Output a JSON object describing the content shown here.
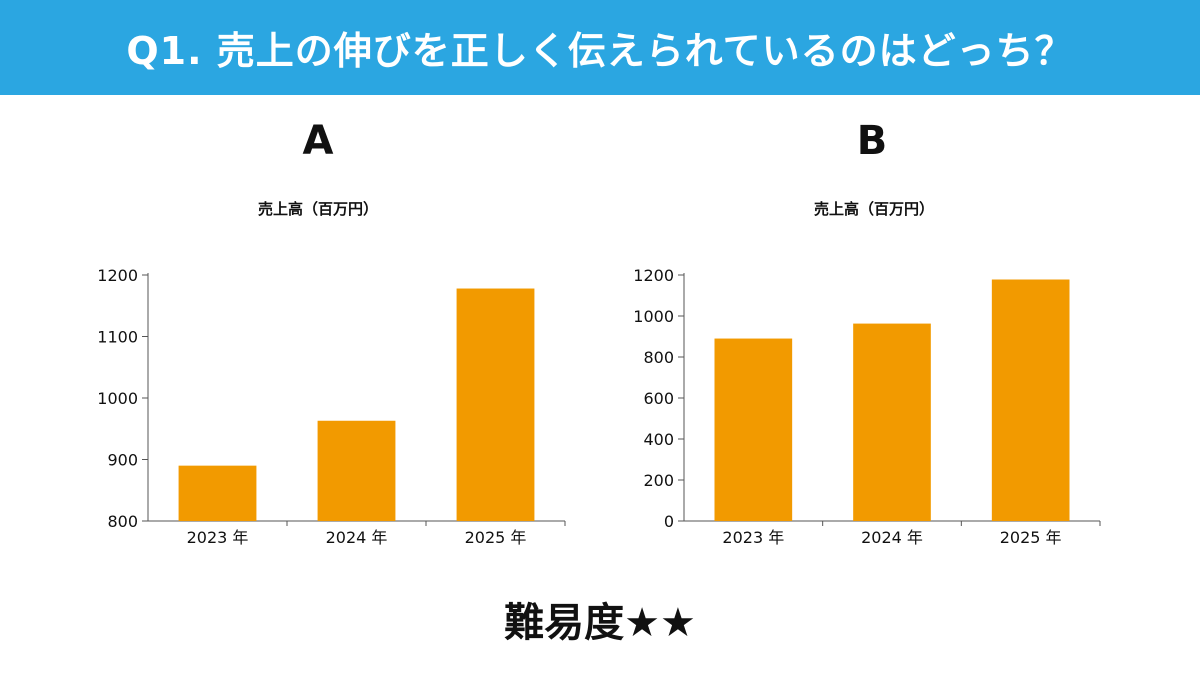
{
  "header": {
    "question": "Q1. 売上の伸びを正しく伝えられているのはどっち？",
    "background_color": "#2ba6e1"
  },
  "footer": {
    "difficulty": "難易度★★"
  },
  "chart_data": [
    {
      "panel": "A",
      "type": "bar",
      "title": "売上高（百万円）",
      "categories": [
        "2023 年",
        "2024 年",
        "2025 年"
      ],
      "values": [
        890,
        963,
        1178
      ],
      "ylim": [
        800,
        1200
      ],
      "yticks": [
        800,
        900,
        1000,
        1100,
        1200
      ],
      "bar_color": "#f29a00",
      "grid": false
    },
    {
      "panel": "B",
      "type": "bar",
      "title": "売上高（百万円）",
      "categories": [
        "2023 年",
        "2024 年",
        "2025 年"
      ],
      "values": [
        890,
        963,
        1178
      ],
      "ylim": [
        0,
        1200
      ],
      "yticks": [
        0,
        200,
        400,
        600,
        800,
        1000,
        1200
      ],
      "bar_color": "#f29a00",
      "grid": false
    }
  ]
}
